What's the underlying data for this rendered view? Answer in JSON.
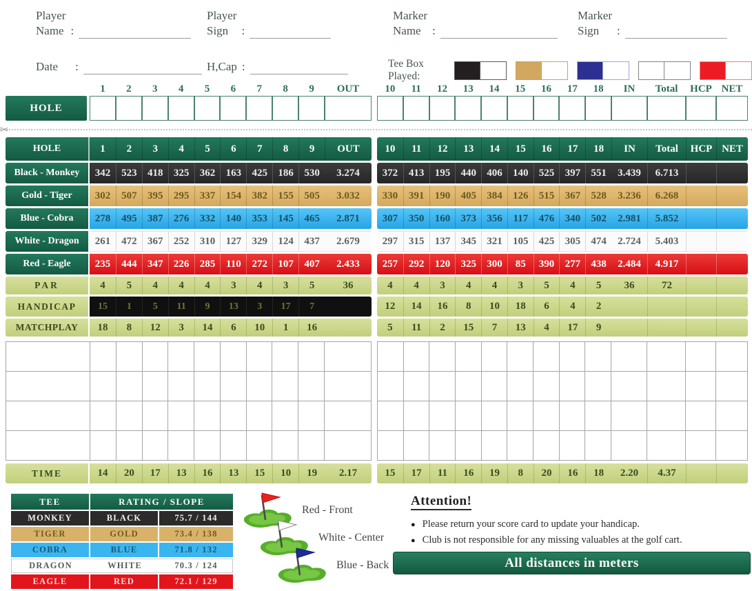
{
  "form": {
    "colon": ":",
    "player_name_label": "Player\nName",
    "player_sign_label": "Player\nSign",
    "marker_name_label": "Marker\nName",
    "marker_sign_label": "Marker\nSign",
    "date_label": "Date",
    "hcap_label": "H,Cap",
    "tee_box_label": "Tee Box Played:",
    "tee_boxes": [
      {
        "name": "black",
        "fill": "#231f20",
        "border": "#58595b"
      },
      {
        "name": "gold",
        "fill": "#d2a85f",
        "border": "#c8a164"
      },
      {
        "name": "blue",
        "fill": "#2d2f92",
        "border": "#9fa4d6"
      },
      {
        "name": "white",
        "fill": "#ffffff",
        "border": "#808285"
      },
      {
        "name": "red",
        "fill": "#ed1c24",
        "border": "#f07f7f"
      }
    ]
  },
  "strip": {
    "hole_label": "HOLE"
  },
  "table": {
    "header": {
      "label": "HOLE",
      "left": [
        "1",
        "2",
        "3",
        "4",
        "5",
        "6",
        "7",
        "8",
        "9",
        "OUT"
      ],
      "right": [
        "10",
        "11",
        "12",
        "13",
        "14",
        "15",
        "16",
        "17",
        "18",
        "IN",
        "Total",
        "HCP",
        "NET"
      ]
    },
    "rows": [
      {
        "label": "Black - Monkey",
        "left": [
          "342",
          "523",
          "418",
          "325",
          "362",
          "163",
          "425",
          "186",
          "530"
        ],
        "out": "3.274",
        "right": [
          "372",
          "413",
          "195",
          "440",
          "406",
          "140",
          "525",
          "397",
          "551"
        ],
        "in": "3.439",
        "total": "6.713"
      },
      {
        "label": "Gold - Tiger",
        "left": [
          "302",
          "507",
          "395",
          "295",
          "337",
          "154",
          "382",
          "155",
          "505"
        ],
        "out": "3.032",
        "right": [
          "330",
          "391",
          "190",
          "405",
          "384",
          "126",
          "515",
          "367",
          "528"
        ],
        "in": "3.236",
        "total": "6.268"
      },
      {
        "label": "Blue - Cobra",
        "left": [
          "278",
          "495",
          "387",
          "276",
          "332",
          "140",
          "353",
          "145",
          "465"
        ],
        "out": "2.871",
        "right": [
          "307",
          "350",
          "160",
          "373",
          "356",
          "117",
          "476",
          "340",
          "502"
        ],
        "in": "2.981",
        "total": "5.852"
      },
      {
        "label": "White - Dragon",
        "left": [
          "261",
          "472",
          "367",
          "252",
          "310",
          "127",
          "329",
          "124",
          "437"
        ],
        "out": "2.679",
        "right": [
          "297",
          "315",
          "137",
          "345",
          "321",
          "105",
          "425",
          "305",
          "474"
        ],
        "in": "2.724",
        "total": "5.403"
      },
      {
        "label": "Red - Eagle",
        "left": [
          "235",
          "444",
          "347",
          "226",
          "285",
          "110",
          "272",
          "107",
          "407"
        ],
        "out": "2.433",
        "right": [
          "257",
          "292",
          "120",
          "325",
          "300",
          "85",
          "390",
          "277",
          "438"
        ],
        "in": "2.484",
        "total": "4.917"
      }
    ],
    "par": {
      "label": "PAR",
      "left": [
        "4",
        "5",
        "4",
        "4",
        "4",
        "3",
        "4",
        "3",
        "5"
      ],
      "out": "36",
      "right": [
        "4",
        "4",
        "3",
        "4",
        "4",
        "3",
        "5",
        "4",
        "5"
      ],
      "in": "36",
      "total": "72"
    },
    "handicap": {
      "label": "HANDICAP",
      "left": [
        "15",
        "1",
        "5",
        "11",
        "9",
        "13",
        "3",
        "17",
        "7"
      ],
      "right": [
        "12",
        "14",
        "16",
        "8",
        "10",
        "18",
        "6",
        "4",
        "2"
      ]
    },
    "matchplay": {
      "label": "MATCHPLAY",
      "left": [
        "18",
        "8",
        "12",
        "3",
        "14",
        "6",
        "10",
        "1",
        "16"
      ],
      "right": [
        "5",
        "11",
        "2",
        "15",
        "7",
        "13",
        "4",
        "17",
        "9"
      ]
    },
    "time": {
      "label": "TIME",
      "left": [
        "14",
        "20",
        "17",
        "13",
        "16",
        "13",
        "15",
        "10",
        "19"
      ],
      "out": "2.17",
      "right": [
        "15",
        "17",
        "11",
        "16",
        "19",
        "8",
        "20",
        "16",
        "18"
      ],
      "in": "2.20",
      "total": "4.37"
    }
  },
  "tee_table": {
    "header_tee": "TEE",
    "header_rating_slope": "RATING   /   SLOPE",
    "rows": [
      {
        "tee": "MONKEY",
        "color": "BLACK",
        "rating_slope": "75.7 / 144",
        "bg": "#2d2a2b",
        "fg": "#f1f1f1"
      },
      {
        "tee": "TIGER",
        "color": "GOLD",
        "rating_slope": "73.4 / 138",
        "bg": "#d9b269",
        "fg": "#6d5a22"
      },
      {
        "tee": "COBRA",
        "color": "BLUE",
        "rating_slope": "71.8 / 132",
        "bg": "#3ab5f0",
        "fg": "#175a74"
      },
      {
        "tee": "DRAGON",
        "color": "WHITE",
        "rating_slope": "70.3 / 124",
        "bg": "#ffffff",
        "fg": "#58595b",
        "border": "#c9c9c9"
      },
      {
        "tee": "EAGLE",
        "color": "RED",
        "rating_slope": "72.1 / 129",
        "bg": "#e2151c",
        "fg": "#ffd8d4"
      }
    ]
  },
  "flags": [
    {
      "label": "Red - Front",
      "color": "#e8231e",
      "stroke": "#b01510"
    },
    {
      "label": "White - Center",
      "color": "#ffffff",
      "stroke": "#8a8a8a"
    },
    {
      "label": "Blue - Back",
      "color": "#1d2b9c",
      "stroke": "#141f73"
    }
  ],
  "attention": {
    "title": "Attention!",
    "bullets": [
      "Please return your score card to update your handicap.",
      "Club is not responsible for any missing valuables at the golf cart."
    ]
  },
  "banner": "All distances in meters"
}
